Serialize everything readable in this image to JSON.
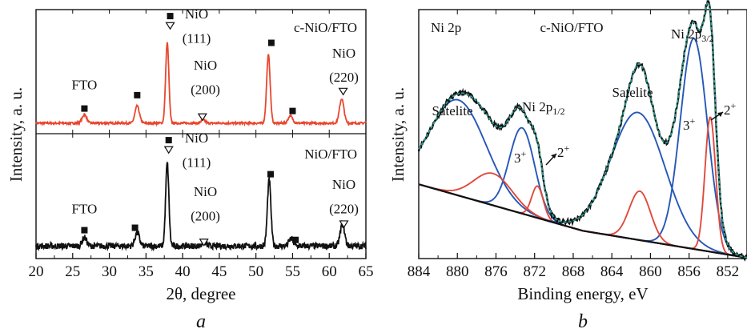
{
  "figure": {
    "panel_a_label": "a",
    "panel_b_label": "b"
  },
  "colors": {
    "xrd_c_nio": "#e8472e",
    "xrd_nio": "#111111",
    "xps_raw": "#111111",
    "xps_envelope": "#2aa090",
    "xps_3plus": "#2657b8",
    "xps_2plus": "#e04a3c",
    "xps_background": "#111111"
  },
  "chart_data": [
    {
      "type": "line",
      "panel": "a",
      "xlabel": "2θ, degree",
      "ylabel": "Intensity, a. u.",
      "xlim": [
        20,
        65
      ],
      "x_ticks": [
        20,
        25,
        30,
        35,
        40,
        45,
        50,
        55,
        60,
        65
      ],
      "legend_markers": [
        {
          "symbol": "filled-square",
          "meaning": "FTO"
        },
        {
          "symbol": "open-triangle",
          "meaning": "NiO"
        }
      ],
      "series": [
        {
          "name": "c-NiO/FTO",
          "baseline": 0.08,
          "noise": 0.008,
          "peaks": [
            {
              "x": 26.6,
              "height": 0.07,
              "width": 0.3
            },
            {
              "x": 33.8,
              "height": 0.14,
              "width": 0.3
            },
            {
              "x": 37.9,
              "height": 0.66,
              "width": 0.22
            },
            {
              "x": 42.8,
              "height": 0.025,
              "width": 0.3
            },
            {
              "x": 51.7,
              "height": 0.56,
              "width": 0.24
            },
            {
              "x": 54.7,
              "height": 0.06,
              "width": 0.3
            },
            {
              "x": 61.7,
              "height": 0.2,
              "width": 0.3
            },
            {
              "x": 65.5,
              "height": 0.05,
              "width": 0.3
            }
          ],
          "annotations": [
            {
              "x": 26.6,
              "y": 0.36,
              "text": "FTO",
              "marker": "filled-square",
              "marker_y": 0.2,
              "text_position": "above"
            },
            {
              "x": 33.8,
              "y": 0.0,
              "text": "",
              "marker": "filled-square",
              "marker_y": 0.31,
              "text_position": "none"
            },
            {
              "x": 38.3,
              "y": 0.0,
              "text": "",
              "marker": "filled-square",
              "marker_y": 0.96,
              "text_position": "none"
            },
            {
              "x": 38.3,
              "y": 0.0,
              "text": "",
              "marker": "open-triangle",
              "marker_y": 0.88,
              "text_position": "none"
            },
            {
              "x": 42.7,
              "y": 0.0,
              "text": "",
              "marker": "open-triangle",
              "marker_y": 0.13,
              "text_position": "none"
            },
            {
              "x": 52.1,
              "y": 0.0,
              "text": "",
              "marker": "filled-square",
              "marker_y": 0.74,
              "text_position": "none"
            },
            {
              "x": 55.0,
              "y": 0.0,
              "text": "",
              "marker": "filled-square",
              "marker_y": 0.18,
              "text_position": "none"
            },
            {
              "x": 61.9,
              "y": 0.0,
              "text": "",
              "marker": "open-triangle",
              "marker_y": 0.34,
              "text_position": "none"
            }
          ],
          "label_texts": [
            {
              "text": "NiO",
              "x": 41.9,
              "y": 0.94
            },
            {
              "text": "(111)",
              "x": 41.9,
              "y": 0.74
            },
            {
              "text": "NiO",
              "x": 43.1,
              "y": 0.52
            },
            {
              "text": "(200)",
              "x": 43.1,
              "y": 0.32
            },
            {
              "text": "NiO",
              "x": 62.0,
              "y": 0.62
            },
            {
              "text": "(220)",
              "x": 62.0,
              "y": 0.42
            }
          ],
          "panel_label": "c-NiO/FTO"
        },
        {
          "name": "NiO/FTO",
          "baseline": 0.09,
          "noise": 0.025,
          "peaks": [
            {
              "x": 26.6,
              "height": 0.07,
              "width": 0.3
            },
            {
              "x": 33.8,
              "height": 0.11,
              "width": 0.3
            },
            {
              "x": 37.9,
              "height": 0.68,
              "width": 0.22
            },
            {
              "x": 42.9,
              "height": 0.03,
              "width": 0.3
            },
            {
              "x": 51.8,
              "height": 0.54,
              "width": 0.24
            },
            {
              "x": 54.8,
              "height": 0.06,
              "width": 0.3
            },
            {
              "x": 61.8,
              "height": 0.18,
              "width": 0.3
            }
          ],
          "annotations": [
            {
              "x": 26.6,
              "y": 0.0,
              "text": "",
              "marker": "filled-square",
              "marker_y": 0.22,
              "text_position": "none"
            },
            {
              "x": 33.5,
              "y": 0.0,
              "text": "",
              "marker": "filled-square",
              "marker_y": 0.24,
              "text_position": "none"
            },
            {
              "x": 38.1,
              "y": 0.0,
              "text": "",
              "marker": "filled-square",
              "marker_y": 0.96,
              "text_position": "none"
            },
            {
              "x": 38.1,
              "y": 0.0,
              "text": "",
              "marker": "open-triangle",
              "marker_y": 0.88,
              "text_position": "none"
            },
            {
              "x": 42.9,
              "y": 0.0,
              "text": "",
              "marker": "open-triangle",
              "marker_y": 0.12,
              "text_position": "none"
            },
            {
              "x": 52.0,
              "y": 0.0,
              "text": "",
              "marker": "filled-square",
              "marker_y": 0.68,
              "text_position": "none"
            },
            {
              "x": 55.4,
              "y": 0.0,
              "text": "",
              "marker": "filled-square",
              "marker_y": 0.14,
              "text_position": "none"
            },
            {
              "x": 62.0,
              "y": 0.0,
              "text": "",
              "marker": "open-triangle",
              "marker_y": 0.27,
              "text_position": "none"
            }
          ],
          "label_texts": [
            {
              "text": "FTO",
              "x": 26.6,
              "y": 0.36
            },
            {
              "text": "NiO",
              "x": 41.9,
              "y": 0.94
            },
            {
              "text": "(111)",
              "x": 41.9,
              "y": 0.74
            },
            {
              "text": "NiO",
              "x": 43.1,
              "y": 0.5
            },
            {
              "text": "(200)",
              "x": 43.1,
              "y": 0.3
            },
            {
              "text": "NiO",
              "x": 62.0,
              "y": 0.56
            },
            {
              "text": "(220)",
              "x": 62.0,
              "y": 0.36
            }
          ],
          "panel_label": "NiO/FTO"
        }
      ]
    },
    {
      "type": "line",
      "panel": "b",
      "xlabel": "Binding energy, eV",
      "ylabel": "Intensity, a. u.",
      "xlim": [
        884,
        850
      ],
      "x_ticks": [
        884,
        880,
        876,
        872,
        868,
        864,
        860,
        856,
        852
      ],
      "ylim": [
        0,
        1
      ],
      "title_left": "Ni 2p",
      "title_center": "c-NiO/FTO",
      "background": {
        "start": 0.3,
        "mid": 0.11,
        "end": 0.0
      },
      "components": [
        {
          "name": "Satelite",
          "center": 879.9,
          "height": 0.39,
          "width": 2.9,
          "color_key": "xps_3plus"
        },
        {
          "name": "Ni 2p1/2 3+",
          "center": 873.3,
          "height": 0.35,
          "width": 1.3,
          "color_key": "xps_3plus"
        },
        {
          "name": "Ni 2p1/2 2+",
          "center": 871.7,
          "height": 0.13,
          "width": 0.6,
          "color_key": "xps_2plus"
        },
        {
          "name": "sat 2p1/2 2+",
          "center": 876.3,
          "height": 0.13,
          "width": 2.0,
          "color_key": "xps_2plus"
        },
        {
          "name": "Satelite",
          "center": 861.3,
          "height": 0.52,
          "width": 2.8,
          "color_key": "xps_3plus"
        },
        {
          "name": "Ni 2p3/2 3+",
          "center": 855.5,
          "height": 0.86,
          "width": 1.4,
          "color_key": "xps_3plus"
        },
        {
          "name": "Ni 2p3/2 2+",
          "center": 853.8,
          "height": 0.55,
          "width": 0.55,
          "color_key": "xps_2plus"
        },
        {
          "name": "sat 2p3/2 2+",
          "center": 861.1,
          "height": 0.2,
          "width": 1.1,
          "color_key": "xps_2plus"
        }
      ],
      "text_labels": {
        "satelite_left": "Satelite",
        "satelite_right": "Satelite",
        "ni2p12": "Ni 2p",
        "ni2p12_sub": "1/2",
        "ni2p32": "Ni 2p",
        "ni2p32_sub": "3/2",
        "three_plus_left": "3",
        "two_plus_left": "2",
        "three_plus_right": "3",
        "two_plus_right": "2",
        "plus": "+"
      }
    }
  ]
}
